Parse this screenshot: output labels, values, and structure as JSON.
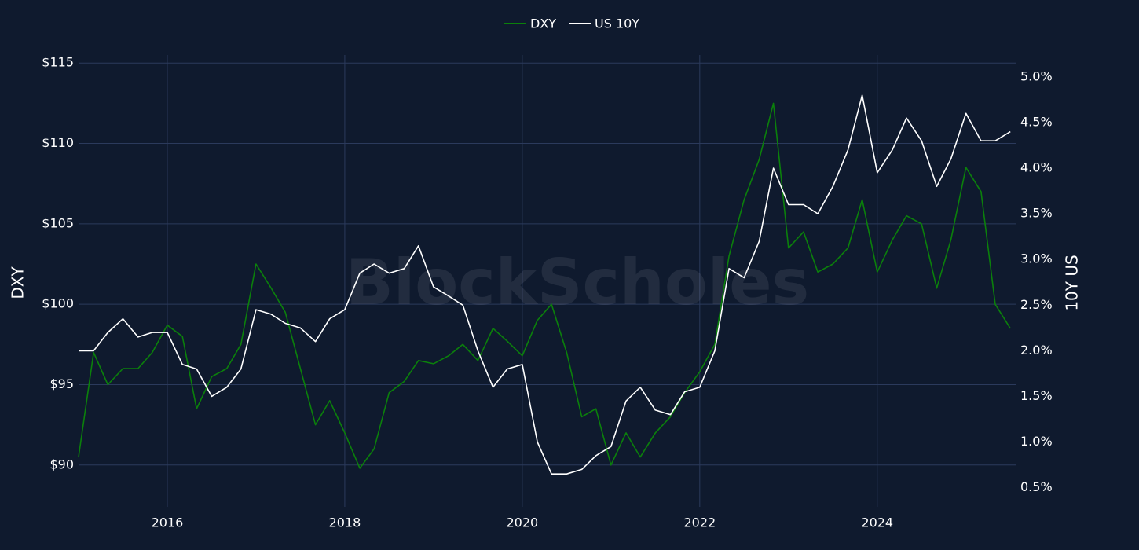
{
  "chart_data": {
    "type": "line",
    "watermark": "BlockScholes",
    "ylabel": "DXY",
    "y2label": "10Y US",
    "legend": "top-center",
    "grid": true,
    "x": [
      2015,
      2015.17,
      2015.33,
      2015.5,
      2015.67,
      2015.83,
      2016,
      2016.17,
      2016.33,
      2016.5,
      2016.67,
      2016.83,
      2017,
      2017.17,
      2017.33,
      2017.5,
      2017.67,
      2017.83,
      2018,
      2018.17,
      2018.33,
      2018.5,
      2018.67,
      2018.83,
      2019,
      2019.17,
      2019.33,
      2019.5,
      2019.67,
      2019.83,
      2020,
      2020.17,
      2020.33,
      2020.5,
      2020.67,
      2020.83,
      2021,
      2021.17,
      2021.33,
      2021.5,
      2021.67,
      2021.83,
      2022,
      2022.17,
      2022.33,
      2022.5,
      2022.67,
      2022.83,
      2023,
      2023.17,
      2023.33,
      2023.5,
      2023.67,
      2023.83,
      2024,
      2024.17,
      2024.33,
      2024.5,
      2024.67,
      2024.83,
      2025,
      2025.17,
      2025.33,
      2025.5
    ],
    "xlim": [
      2015,
      2025.56
    ],
    "xticks": [
      2016,
      2018,
      2020,
      2022,
      2024
    ],
    "ylim": [
      87.4,
      115.5
    ],
    "yticks": [
      {
        "value": 90,
        "label": "$90"
      },
      {
        "value": 95,
        "label": "$95"
      },
      {
        "value": 100,
        "label": "$100"
      },
      {
        "value": 105,
        "label": "$105"
      },
      {
        "value": 110,
        "label": "$110"
      },
      {
        "value": 115,
        "label": "$115"
      }
    ],
    "y2lim": [
      0.29,
      5.24
    ],
    "y2ticks": [
      {
        "value": 0.5,
        "label": "0.5%"
      },
      {
        "value": 1,
        "label": "1.0%"
      },
      {
        "value": 1.5,
        "label": "1.5%"
      },
      {
        "value": 2,
        "label": "2.0%"
      },
      {
        "value": 2.5,
        "label": "2.5%"
      },
      {
        "value": 3,
        "label": "3.0%"
      },
      {
        "value": 3.5,
        "label": "3.5%"
      },
      {
        "value": 4,
        "label": "4.0%"
      },
      {
        "value": 4.5,
        "label": "4.5%"
      },
      {
        "value": 5,
        "label": "5.0%"
      }
    ],
    "series": [
      {
        "name": "DXY",
        "color": "#0b800b",
        "axis": "y",
        "values": [
          90.5,
          97,
          95,
          96,
          96,
          97,
          98.7,
          98,
          93.5,
          95.5,
          96,
          97.5,
          102.5,
          101,
          99.5,
          96,
          92.5,
          94,
          92,
          89.8,
          91,
          94.5,
          95.2,
          96.5,
          96.3,
          96.8,
          97.5,
          96.5,
          98.5,
          97.7,
          96.8,
          99,
          100,
          97,
          93,
          93.5,
          90,
          92,
          90.5,
          92,
          93,
          94.5,
          95.8,
          97.5,
          103,
          106.5,
          109,
          112.5,
          103.5,
          104.5,
          102,
          102.5,
          103.5,
          106.5,
          102,
          104,
          105.5,
          105,
          101,
          104,
          108.5,
          107,
          100,
          98.5
        ]
      },
      {
        "name": "US 10Y",
        "color": "#ffffff",
        "axis": "y2",
        "values": [
          2.0,
          2.0,
          2.2,
          2.35,
          2.15,
          2.2,
          2.2,
          1.85,
          1.8,
          1.5,
          1.6,
          1.8,
          2.45,
          2.4,
          2.3,
          2.25,
          2.1,
          2.35,
          2.45,
          2.85,
          2.95,
          2.85,
          2.9,
          3.15,
          2.7,
          2.6,
          2.5,
          2.0,
          1.6,
          1.8,
          1.85,
          1.0,
          0.65,
          0.65,
          0.7,
          0.85,
          0.95,
          1.45,
          1.6,
          1.35,
          1.3,
          1.55,
          1.6,
          2.0,
          2.9,
          2.8,
          3.2,
          4.0,
          3.6,
          3.6,
          3.5,
          3.8,
          4.2,
          4.8,
          3.95,
          4.2,
          4.55,
          4.3,
          3.8,
          4.1,
          4.6,
          4.3,
          4.3,
          4.4
        ]
      }
    ]
  }
}
